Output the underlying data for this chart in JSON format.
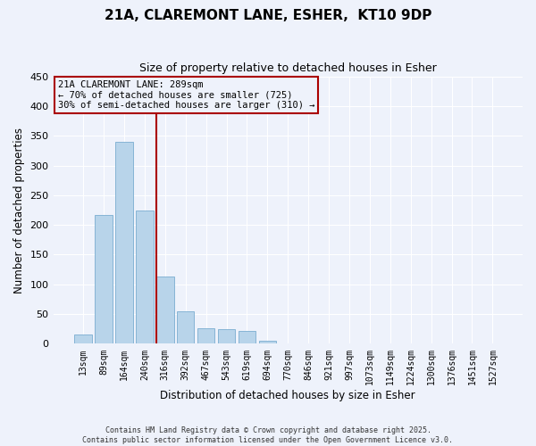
{
  "title": "21A, CLAREMONT LANE, ESHER,  KT10 9DP",
  "subtitle": "Size of property relative to detached houses in Esher",
  "xlabel": "Distribution of detached houses by size in Esher",
  "ylabel": "Number of detached properties",
  "bar_labels": [
    "13sqm",
    "89sqm",
    "164sqm",
    "240sqm",
    "316sqm",
    "392sqm",
    "467sqm",
    "543sqm",
    "619sqm",
    "694sqm",
    "770sqm",
    "846sqm",
    "921sqm",
    "997sqm",
    "1073sqm",
    "1149sqm",
    "1224sqm",
    "1300sqm",
    "1376sqm",
    "1451sqm",
    "1527sqm"
  ],
  "bar_values": [
    15,
    217,
    340,
    224,
    113,
    55,
    26,
    25,
    22,
    5,
    1,
    0,
    0,
    0,
    0,
    0,
    0,
    0,
    0,
    0,
    0
  ],
  "bar_color": "#b8d4ea",
  "bar_edge_color": "#7aadd0",
  "vline_color": "#aa0000",
  "ylim": [
    0,
    450
  ],
  "yticks": [
    0,
    50,
    100,
    150,
    200,
    250,
    300,
    350,
    400,
    450
  ],
  "annotation_title": "21A CLAREMONT LANE: 289sqm",
  "annotation_line1": "← 70% of detached houses are smaller (725)",
  "annotation_line2": "30% of semi-detached houses are larger (310) →",
  "footer_line1": "Contains HM Land Registry data © Crown copyright and database right 2025.",
  "footer_line2": "Contains public sector information licensed under the Open Government Licence v3.0.",
  "bg_color": "#eef2fb",
  "grid_color": "#ffffff",
  "title_fontsize": 11,
  "subtitle_fontsize": 9,
  "vline_bar_index": 4
}
